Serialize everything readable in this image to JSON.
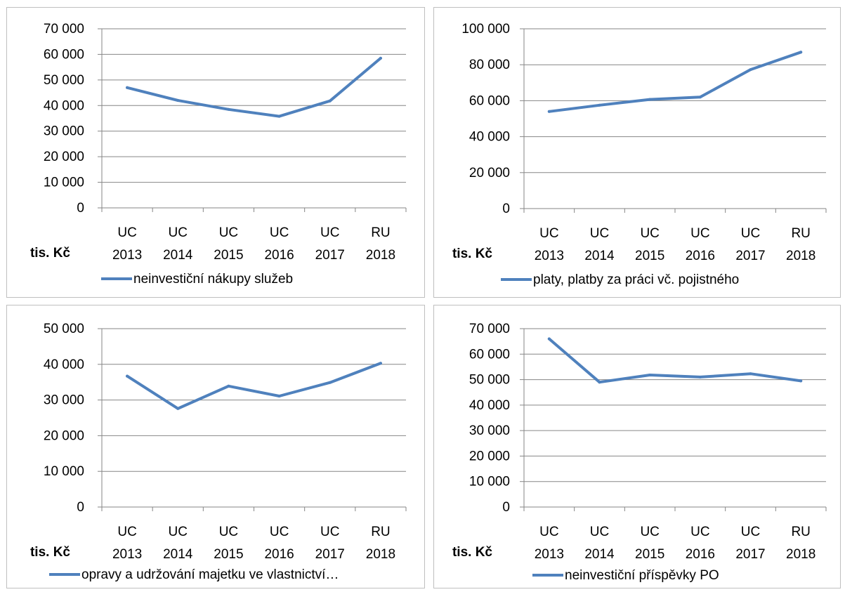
{
  "chart_data": [
    {
      "type": "line",
      "categories": [
        [
          "UC",
          "2013"
        ],
        [
          "UC",
          "2014"
        ],
        [
          "UC",
          "2015"
        ],
        [
          "UC",
          "2016"
        ],
        [
          "UC",
          "2017"
        ],
        [
          "RU",
          "2018"
        ]
      ],
      "unit_label": "tis. Kč",
      "ylim": [
        0,
        70000
      ],
      "ytick_step": 10000,
      "yticks": [
        "0",
        "10 000",
        "20 000",
        "30 000",
        "40 000",
        "50 000",
        "60 000",
        "70 000"
      ],
      "series": [
        {
          "name": "neinvestiční nákupy služeb",
          "values": [
            47000,
            42000,
            38500,
            35800,
            41800,
            58500
          ]
        }
      ],
      "legend": "bottom",
      "grid": true
    },
    {
      "type": "line",
      "categories": [
        [
          "UC",
          "2013"
        ],
        [
          "UC",
          "2014"
        ],
        [
          "UC",
          "2015"
        ],
        [
          "UC",
          "2016"
        ],
        [
          "UC",
          "2017"
        ],
        [
          "RU",
          "2018"
        ]
      ],
      "unit_label": "tis. Kč",
      "ylim": [
        0,
        100000
      ],
      "ytick_step": 20000,
      "yticks": [
        "0",
        "20 000",
        "40 000",
        "60 000",
        "80 000",
        "100 000"
      ],
      "series": [
        {
          "name": "platy, platby za práci vč. pojistného",
          "values": [
            54000,
            57500,
            60700,
            62000,
            77300,
            87000
          ]
        }
      ],
      "legend": "bottom",
      "grid": true
    },
    {
      "type": "line",
      "categories": [
        [
          "UC",
          "2013"
        ],
        [
          "UC",
          "2014"
        ],
        [
          "UC",
          "2015"
        ],
        [
          "UC",
          "2016"
        ],
        [
          "UC",
          "2017"
        ],
        [
          "RU",
          "2018"
        ]
      ],
      "unit_label": "tis. Kč",
      "ylim": [
        0,
        50000
      ],
      "ytick_step": 10000,
      "yticks": [
        "0",
        "10 000",
        "20 000",
        "30 000",
        "40 000",
        "50 000"
      ],
      "series": [
        {
          "name": "opravy a udržování majetku ve vlastnictví…",
          "values": [
            36700,
            27600,
            33900,
            31100,
            34900,
            40300
          ]
        }
      ],
      "legend": "bottom",
      "grid": true
    },
    {
      "type": "line",
      "categories": [
        [
          "UC",
          "2013"
        ],
        [
          "UC",
          "2014"
        ],
        [
          "UC",
          "2015"
        ],
        [
          "UC",
          "2016"
        ],
        [
          "UC",
          "2017"
        ],
        [
          "RU",
          "2018"
        ]
      ],
      "unit_label": "tis. Kč",
      "ylim": [
        0,
        70000
      ],
      "ytick_step": 10000,
      "yticks": [
        "0",
        "10 000",
        "20 000",
        "30 000",
        "40 000",
        "50 000",
        "60 000",
        "70 000"
      ],
      "series": [
        {
          "name": "neinvestiční příspěvky PO",
          "values": [
            66000,
            49000,
            51800,
            51000,
            52300,
            49500
          ]
        }
      ],
      "legend": "bottom",
      "grid": true
    }
  ],
  "colors": {
    "line": "#4f81bd",
    "grid": "#868686",
    "axis": "#868686",
    "border": "#bfbfbf"
  }
}
